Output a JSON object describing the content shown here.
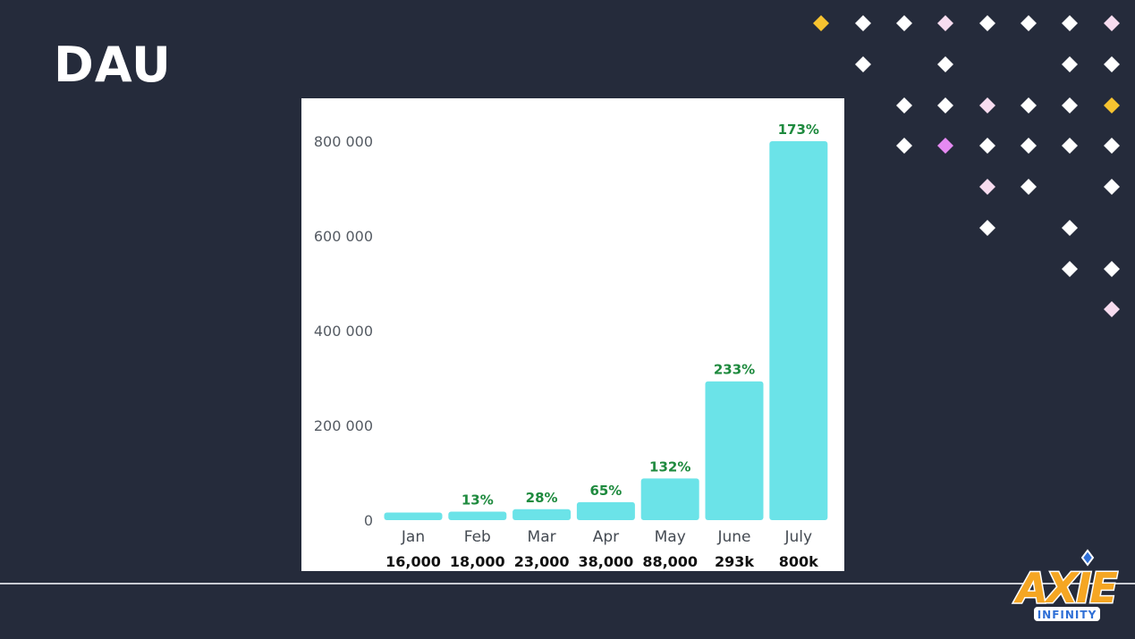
{
  "slide": {
    "title": "DAU",
    "colors": {
      "background": "#252b3b",
      "bar": "#6be3e8",
      "growth": "#1e8a3e",
      "dot_white": "#ffffff",
      "dot_pink": "#f7dcef",
      "dot_violet": "#e58af2",
      "dot_gold": "#f7c330"
    }
  },
  "logo": {
    "text_main": "AXIE",
    "text_sub": "INFINITY"
  },
  "chart_data": {
    "type": "bar",
    "title": "",
    "xlabel": "",
    "ylabel": "",
    "categories": [
      "Jan",
      "Feb",
      "Mar",
      "Apr",
      "May",
      "June",
      "July"
    ],
    "values": [
      16000,
      18000,
      23000,
      38000,
      88000,
      293000,
      800000
    ],
    "value_labels": [
      "16,000",
      "18,000",
      "23,000",
      "38,000",
      "88,000",
      "293k",
      "800k"
    ],
    "growth_labels": [
      "",
      "13%",
      "28%",
      "65%",
      "132%",
      "233%",
      "173%"
    ],
    "yticks": [
      0,
      200000,
      400000,
      600000,
      800000
    ],
    "ytick_labels": [
      "0",
      "200 000",
      "400 000",
      "600 000",
      "800 000"
    ],
    "ylim": [
      0,
      800000
    ],
    "grid": false,
    "legend": "none"
  }
}
